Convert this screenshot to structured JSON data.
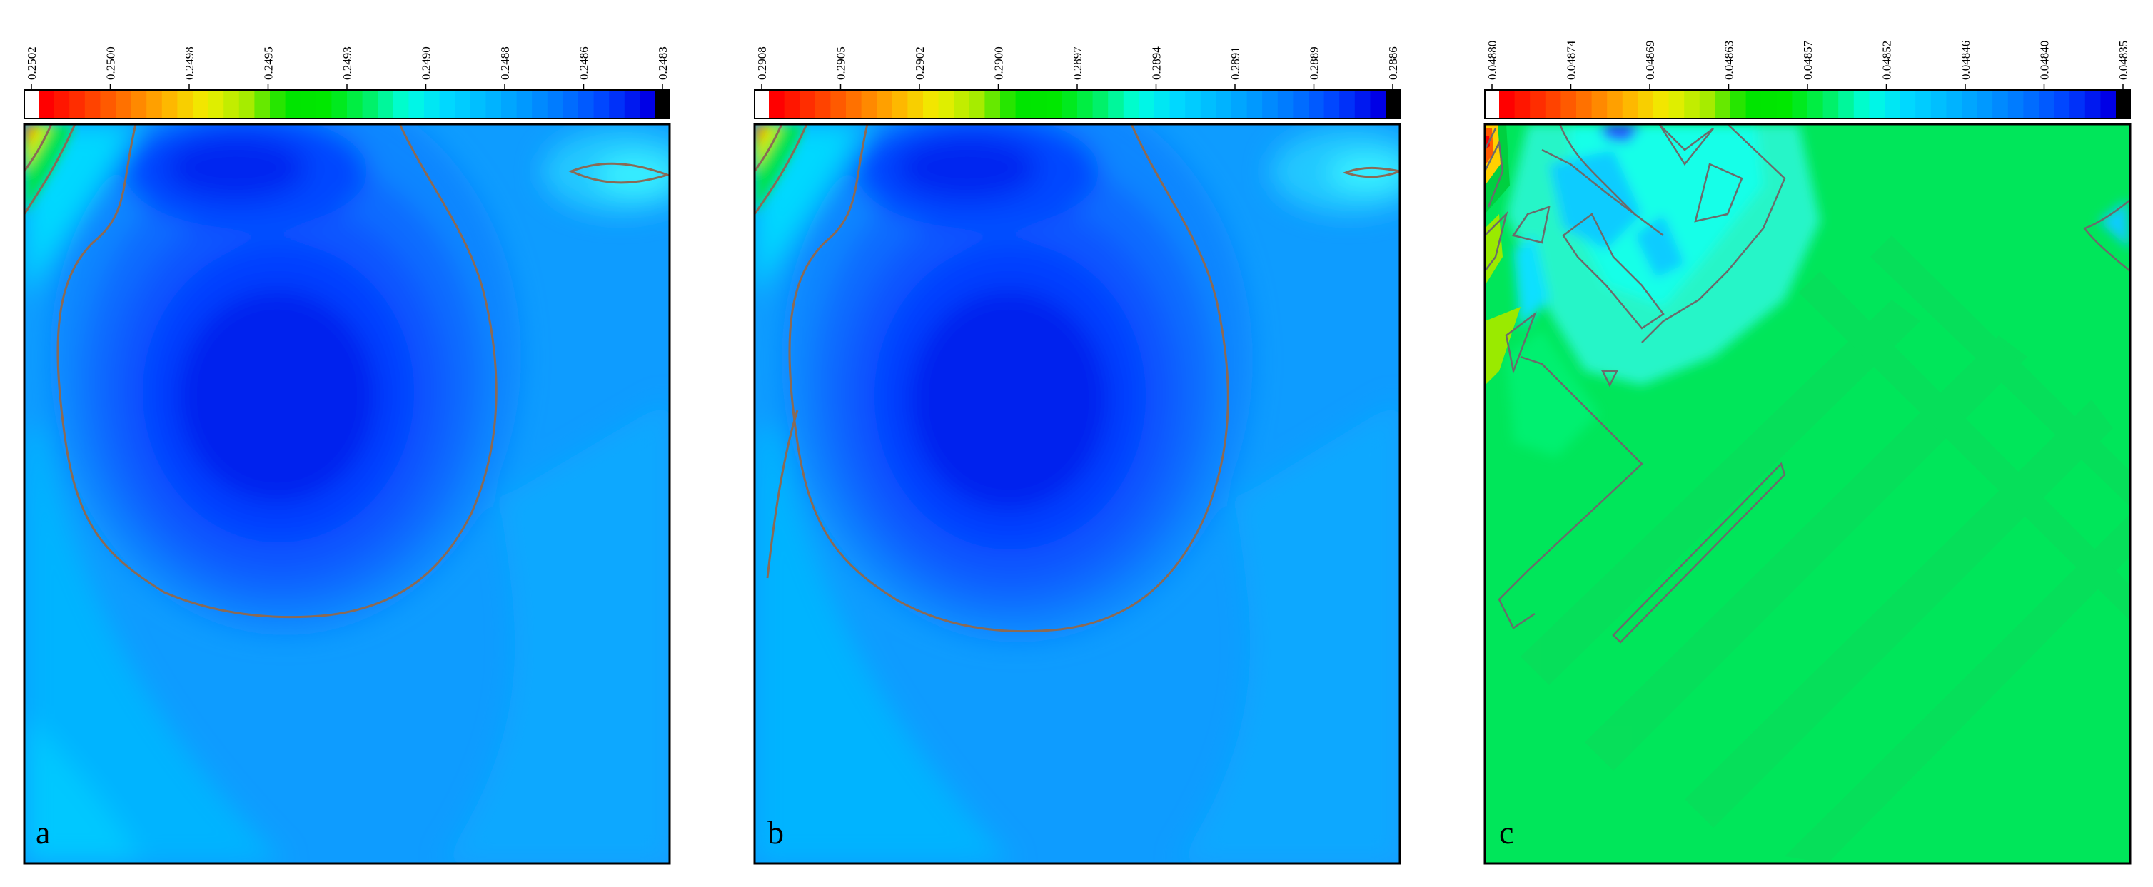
{
  "colormap": [
    "#ffffff",
    "#ff0000",
    "#ff3a00",
    "#ff7600",
    "#ffb300",
    "#f0ef00",
    "#a6ec00",
    "#00e400",
    "#00e800",
    "#00f060",
    "#00ffe0",
    "#00d8ff",
    "#00b8ff",
    "#0096ff",
    "#0070ff",
    "#0040ff",
    "#0000e6",
    "#000000"
  ],
  "contour_line_color": "#8a6a55",
  "chart_data": [
    {
      "type": "heatmap",
      "panel_label": "a",
      "colorbar": {
        "ticks": [
          "0.2502",
          "0.2500",
          "0.2498",
          "0.2495",
          "0.2493",
          "0.2490",
          "0.2488",
          "0.2486",
          "0.2483"
        ],
        "min": 0.2483,
        "max": 0.2502,
        "orientation": "horizontal",
        "placement": "top"
      },
      "field": {
        "background_level": 0.2484,
        "features": [
          {
            "kind": "minimum",
            "level": 0.24838,
            "label": "central low"
          },
          {
            "kind": "minimum",
            "level": 0.2484,
            "label": "upper low"
          },
          {
            "kind": "maximum",
            "level": 0.2502,
            "label": "top-left corner high"
          },
          {
            "kind": "ridge",
            "level": 0.2486,
            "label": "top-right lobe"
          }
        ]
      }
    },
    {
      "type": "heatmap",
      "panel_label": "b",
      "colorbar": {
        "ticks": [
          "0.2908",
          "0.2905",
          "0.2902",
          "0.2900",
          "0.2897",
          "0.2894",
          "0.2891",
          "0.2889",
          "0.2886"
        ],
        "min": 0.2886,
        "max": 0.2908,
        "orientation": "horizontal",
        "placement": "top"
      },
      "field": {
        "background_level": 0.2887,
        "features": [
          {
            "kind": "minimum",
            "level": 0.28862,
            "label": "central low"
          },
          {
            "kind": "minimum",
            "level": 0.28865,
            "label": "upper low"
          },
          {
            "kind": "maximum",
            "level": 0.2908,
            "label": "top-left corner high"
          },
          {
            "kind": "ridge",
            "level": 0.2889,
            "label": "top-right lobe"
          }
        ]
      }
    },
    {
      "type": "heatmap",
      "panel_label": "c",
      "colorbar": {
        "ticks": [
          "0.04880",
          "0.04874",
          "0.04869",
          "0.04863",
          "0.04857",
          "0.04852",
          "0.04846",
          "0.04840",
          "0.04835"
        ],
        "min": 0.04835,
        "max": 0.0488,
        "orientation": "horizontal",
        "placement": "top"
      },
      "field": {
        "background_level": 0.04858,
        "features": [
          {
            "kind": "maximum",
            "level": 0.0488,
            "label": "top-left corner high"
          },
          {
            "kind": "minimum",
            "level": 0.04844,
            "label": "upper-left low"
          },
          {
            "kind": "ridge",
            "level": 0.04855,
            "label": "diagonal streaks"
          }
        ]
      }
    }
  ]
}
